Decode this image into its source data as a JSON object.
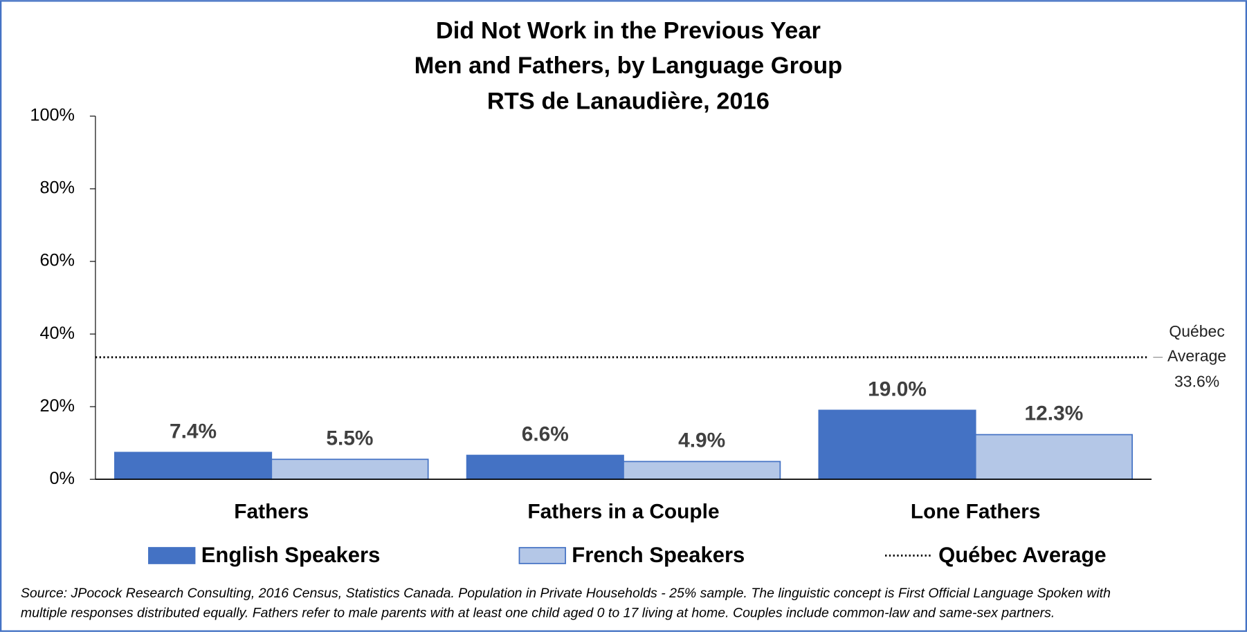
{
  "chart_data": {
    "type": "bar",
    "title": [
      "Did Not Work in the Previous Year",
      "Men and Fathers, by Language Group",
      "RTS de Lanaudière, 2016"
    ],
    "categories": [
      "Fathers",
      "Fathers in a Couple",
      "Lone Fathers"
    ],
    "series": [
      {
        "name": "English Speakers",
        "color": "#4472c4",
        "values": [
          7.4,
          6.6,
          19.0
        ],
        "value_labels": [
          "7.4%",
          "6.6%",
          "19.0%"
        ]
      },
      {
        "name": "French Speakers",
        "color": "#b4c7e7",
        "values": [
          5.5,
          4.9,
          12.3
        ],
        "value_labels": [
          "5.5%",
          "4.9%",
          "12.3%"
        ]
      }
    ],
    "reference_line": {
      "name": "Québec Average",
      "value": 33.6,
      "value_label": "33.6%"
    },
    "ylim": [
      0,
      100
    ],
    "yticks": [
      {
        "value": 0,
        "label": "0%"
      },
      {
        "value": 20,
        "label": "20%"
      },
      {
        "value": 40,
        "label": "40%"
      },
      {
        "value": 60,
        "label": "60%"
      },
      {
        "value": 80,
        "label": "80%"
      },
      {
        "value": 100,
        "label": "100%"
      }
    ],
    "legend": "bottom",
    "source": [
      "Source: JPocock Research Consulting, 2016 Census, Statistics Canada. Population in Private Households - 25% sample. The linguistic concept is First Official Language Spoken with",
      "multiple responses distributed equally. Fathers refer to male parents with at least one child aged 0 to 17 living at home. Couples include common-law and same-sex partners."
    ]
  }
}
